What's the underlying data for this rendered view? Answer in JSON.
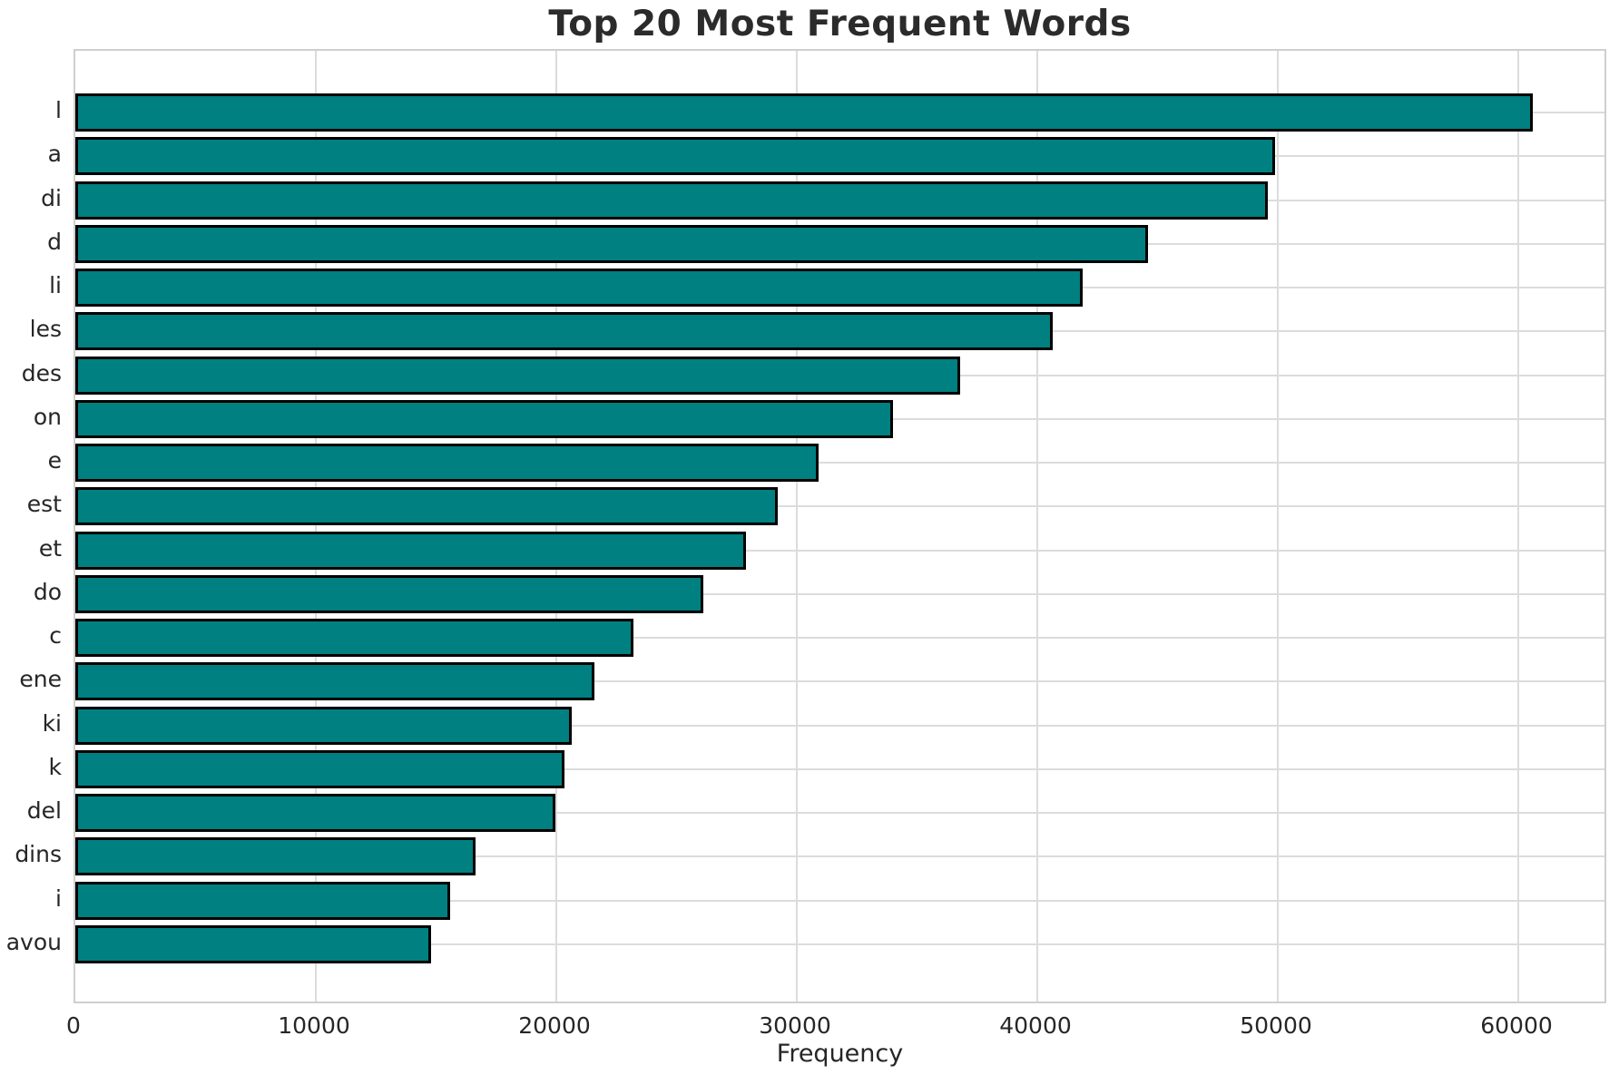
{
  "chart_data": {
    "type": "bar",
    "orientation": "horizontal",
    "title": "Top 20 Most Frequent Words",
    "xlabel": "Frequency",
    "ylabel": "",
    "categories": [
      "l",
      "a",
      "di",
      "d",
      "li",
      "les",
      "des",
      "on",
      "e",
      "est",
      "et",
      "do",
      "c",
      "ene",
      "ki",
      "k",
      "del",
      "dins",
      "i",
      "avou"
    ],
    "values": [
      60600,
      49900,
      49600,
      44600,
      41900,
      40650,
      36800,
      34000,
      30900,
      29200,
      27900,
      26100,
      23200,
      21600,
      20650,
      20350,
      19950,
      16650,
      15600,
      14800
    ],
    "x_ticks": [
      0,
      10000,
      20000,
      30000,
      40000,
      50000,
      60000
    ],
    "xlim": [
      0,
      63700
    ],
    "grid": true,
    "legend": "none",
    "colors": {
      "bar_fill": "#008080",
      "bar_edge": "#000000",
      "grid": "#dcdcdc",
      "spine": "#cfcfcf",
      "text": "#262626",
      "background": "#ffffff"
    }
  }
}
